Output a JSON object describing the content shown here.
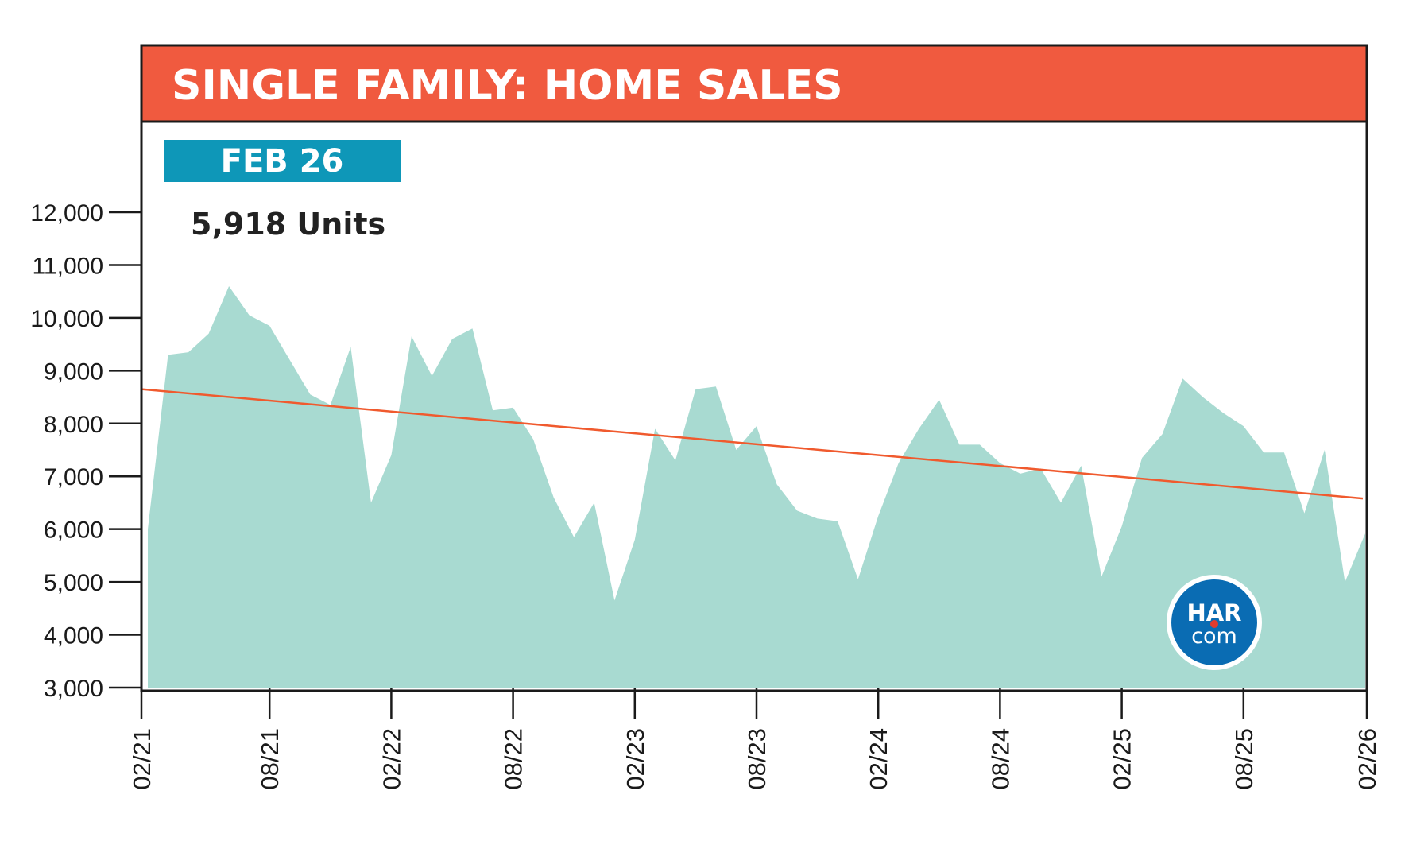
{
  "header": {
    "title": "SINGLE FAMILY: HOME SALES",
    "badge": "FEB 26",
    "current_value": "5,918 Units"
  },
  "logo": {
    "line1": "HAR",
    "line2": "com"
  },
  "colors": {
    "header_bg": "#f05a3f",
    "badge_bg": "#0e97b8",
    "area_fill": "#a8dad1",
    "trend_line": "#f05a2e",
    "logo_bg": "#0a6cb3",
    "logo_dot": "#e23b2e"
  },
  "chart_data": {
    "type": "area",
    "title": "SINGLE FAMILY: HOME SALES",
    "xlabel": "",
    "ylabel": "",
    "ylim": [
      3000,
      12000
    ],
    "y_ticks": [
      "3,000",
      "4,000",
      "5,000",
      "6,000",
      "7,000",
      "8,000",
      "9,000",
      "10,000",
      "11,000",
      "12,000"
    ],
    "y_tick_values": [
      3000,
      4000,
      5000,
      6000,
      7000,
      8000,
      9000,
      10000,
      11000,
      12000
    ],
    "x_ticks": [
      "02/21",
      "08/21",
      "02/22",
      "08/22",
      "02/23",
      "08/23",
      "02/24",
      "08/24",
      "02/25",
      "08/25",
      "02/26"
    ],
    "x": [
      "02/21",
      "03/21",
      "04/21",
      "05/21",
      "06/21",
      "07/21",
      "08/21",
      "09/21",
      "10/21",
      "11/21",
      "12/21",
      "01/22",
      "02/22",
      "03/22",
      "04/22",
      "05/22",
      "06/22",
      "07/22",
      "08/22",
      "09/22",
      "10/22",
      "11/22",
      "12/22",
      "01/23",
      "02/23",
      "03/23",
      "04/23",
      "05/23",
      "06/23",
      "07/23",
      "08/23",
      "09/23",
      "10/23",
      "11/23",
      "12/23",
      "01/24",
      "02/24",
      "03/24",
      "04/24",
      "05/24",
      "06/24",
      "07/24",
      "08/24",
      "09/24",
      "10/24",
      "11/24",
      "12/24",
      "01/25",
      "02/25",
      "03/25",
      "04/25",
      "05/25",
      "06/25",
      "07/25",
      "08/25",
      "09/25",
      "10/25",
      "11/25",
      "12/25",
      "01/26",
      "02/26"
    ],
    "grid": false,
    "series": [
      {
        "values": [
          6000,
          9300,
          9350,
          9700,
          10600,
          10050,
          9850,
          9200,
          8550,
          8350,
          9450,
          6500,
          7400,
          9650,
          8900,
          9600,
          9800,
          8250,
          8300,
          7700,
          6600,
          5850,
          6500,
          4650,
          5800,
          7900,
          7300,
          8650,
          8700,
          7500,
          7950,
          6850,
          6350,
          6200,
          6150,
          5050,
          6250,
          7250,
          7900,
          8450,
          7600,
          7600,
          7250,
          7050,
          7150,
          6500,
          7200,
          5100,
          6050,
          7350,
          7800,
          8850,
          8500,
          8200,
          7950,
          7450,
          7450,
          6300,
          7500,
          5000,
          5918
        ]
      }
    ],
    "trend_line": {
      "start": 8650,
      "end": 6580
    }
  }
}
